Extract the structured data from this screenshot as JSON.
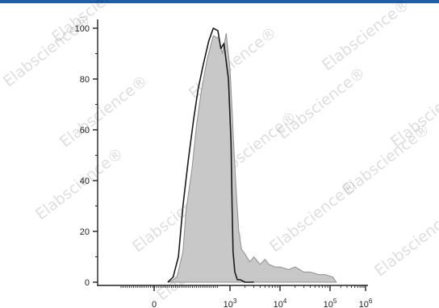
{
  "colors": {
    "top_bar": "#1f5ea8",
    "stained_fill": "#c8c8c8",
    "stained_stroke": "#8f8f8f",
    "control_stroke": "#1a1a1a"
  },
  "watermark": {
    "text": "Elabscience®"
  },
  "chart_data": {
    "type": "area",
    "title": "",
    "xlabel": "",
    "ylabel": "",
    "x_scale": "biexponential",
    "ylim": [
      0,
      100
    ],
    "y_ticks": [
      {
        "value": 0,
        "label": "0"
      },
      {
        "value": 20,
        "label": "20"
      },
      {
        "value": 40,
        "label": "40"
      },
      {
        "value": 60,
        "label": "60"
      },
      {
        "value": 80,
        "label": "80"
      },
      {
        "value": 100,
        "label": "100"
      }
    ],
    "x_ticks": [
      {
        "value": 0,
        "label": "0"
      },
      {
        "value": 1000,
        "label": "10",
        "exp": "3"
      },
      {
        "value": 10000,
        "label": "10",
        "exp": "4"
      },
      {
        "value": 100000,
        "label": "10",
        "exp": "5"
      },
      {
        "value": 1000000,
        "label": "10",
        "exp": "6"
      }
    ],
    "grid": false,
    "series": [
      {
        "style": "filled",
        "x": [
          200,
          300,
          380,
          420,
          500,
          560,
          620,
          700,
          780,
          850,
          900,
          950,
          1000,
          1100,
          1200,
          1350,
          1500,
          1700,
          2000,
          2500,
          3000,
          4000,
          5000,
          6000,
          8000,
          10000,
          15000,
          20000,
          30000,
          40000,
          60000,
          80000,
          120000,
          150000
        ],
        "y": [
          0,
          2,
          12,
          28,
          45,
          62,
          75,
          88,
          97,
          96,
          90,
          98,
          84,
          68,
          52,
          34,
          20,
          13,
          11,
          8,
          10,
          7,
          9,
          7,
          6,
          6,
          5,
          6,
          4,
          4,
          3,
          3,
          2,
          0
        ]
      },
      {
        "style": "line",
        "x": [
          180,
          250,
          320,
          380,
          450,
          520,
          580,
          650,
          720,
          780,
          840,
          880,
          920,
          980,
          1050,
          1100,
          1150,
          1250,
          1400,
          1600,
          2000,
          3000
        ],
        "y": [
          0,
          2,
          10,
          30,
          48,
          64,
          76,
          86,
          95,
          100,
          99,
          92,
          94,
          80,
          55,
          30,
          12,
          4,
          1,
          1,
          0,
          0
        ]
      }
    ]
  }
}
